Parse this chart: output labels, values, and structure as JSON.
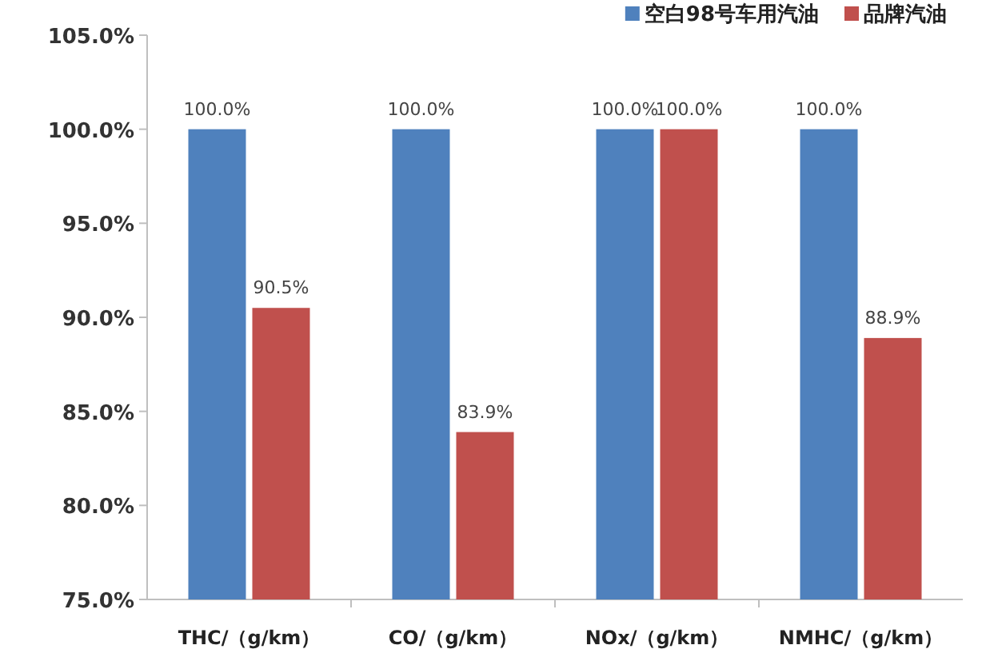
{
  "chart_data": {
    "type": "bar",
    "categories": [
      "THC/（g/km）",
      "CO/（g/km）",
      "NOx/（g/km）",
      "NMHC/（g/km）"
    ],
    "series": [
      {
        "name": "空白98号车用汽油",
        "color": "#4f81bd",
        "values": [
          100.0,
          100.0,
          100.0,
          100.0
        ],
        "value_labels": [
          "100.0%",
          "100.0%",
          "100.0%",
          "100.0%"
        ]
      },
      {
        "name": "品牌汽油",
        "color": "#c0504d",
        "values": [
          90.5,
          83.9,
          100.0,
          88.9
        ],
        "value_labels": [
          "90.5%",
          "83.9%",
          "100.0%",
          "88.9%"
        ]
      }
    ],
    "ylim": [
      75,
      105
    ],
    "yticks": [
      {
        "value": 75,
        "label": "75.0%"
      },
      {
        "value": 80,
        "label": "80.0%"
      },
      {
        "value": 85,
        "label": "85.0%"
      },
      {
        "value": 90,
        "label": "90.0%"
      },
      {
        "value": 95,
        "label": "95.0%"
      },
      {
        "value": 100,
        "label": "100.0%"
      },
      {
        "value": 105,
        "label": "105.0%"
      }
    ],
    "legend": "top right"
  }
}
